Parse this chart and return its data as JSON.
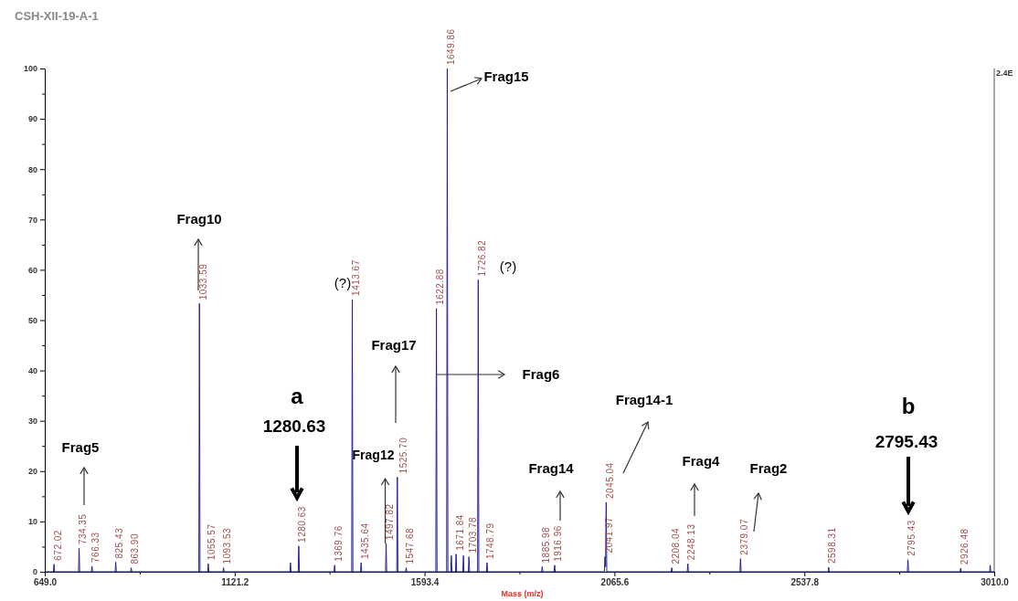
{
  "chart_data": {
    "type": "line",
    "title": "CSH-XII-19-A-1",
    "xlabel": "Mass (m/z)",
    "x": [
      649,
      670.5,
      672.02,
      673.5,
      732.85,
      734.35,
      735.85,
      764.83,
      766.33,
      767.83,
      823.93,
      825.43,
      826.93,
      862.4,
      863.9,
      865.4,
      1032.09,
      1033.59,
      1035.09,
      1054.07,
      1055.57,
      1057.07,
      1092.03,
      1093.53,
      1095.03,
      1258.5,
      1260,
      1261.5,
      1279.13,
      1280.63,
      1282.13,
      1368.26,
      1369.76,
      1371.26,
      1412.17,
      1413.67,
      1415.17,
      1434.14,
      1435.64,
      1437.14,
      1496.32,
      1497.82,
      1499.32,
      1524.2,
      1525.7,
      1527.2,
      1546.18,
      1547.68,
      1549.18,
      1621.38,
      1622.88,
      1624.38,
      1648.36,
      1649.86,
      1651.36,
      1658.5,
      1660,
      1661.5,
      1670.34,
      1671.84,
      1673.34,
      1688.5,
      1690,
      1691.5,
      1702.28,
      1703.78,
      1705.28,
      1725.32,
      1726.82,
      1728.32,
      1747.29,
      1748.79,
      1750.29,
      1884.48,
      1885.98,
      1887.48,
      1915.46,
      1916.96,
      1918.46,
      2040.47,
      2041.97,
      2043.5,
      2045.04,
      2046.54,
      2206.54,
      2208.04,
      2209.54,
      2246.63,
      2248.13,
      2249.63,
      2377.57,
      2379.07,
      2380.57,
      2596.81,
      2598.31,
      2599.81,
      2793.93,
      2795.43,
      2796.93,
      2924.98,
      2926.48,
      2927.98,
      2998.5,
      3000,
      3001.5,
      3010
    ],
    "series": [
      {
        "color": "#1f1f99",
        "values": [
          0,
          0,
          1.5,
          0,
          0,
          4.7,
          0,
          0,
          1.1,
          0,
          0,
          1.9,
          0,
          0,
          0.8,
          0,
          0,
          53.3,
          0,
          0,
          1.6,
          0,
          0,
          0.8,
          0,
          0,
          1.8,
          0,
          0,
          5.1,
          0,
          0,
          1.3,
          0,
          0,
          54.1,
          0,
          0,
          1.8,
          0,
          0,
          5.6,
          0,
          0,
          18.8,
          0,
          0,
          0.8,
          0,
          0,
          52.3,
          0,
          0,
          100,
          0,
          0,
          3.2,
          0,
          0,
          3.5,
          0,
          0,
          3.2,
          0,
          0,
          3,
          0,
          0,
          58,
          0,
          0,
          1.8,
          0,
          0,
          1,
          0,
          0,
          1.3,
          0,
          0,
          3,
          1,
          13.8,
          0,
          0,
          0.8,
          0,
          0,
          1.6,
          0,
          0,
          2.6,
          0,
          0,
          0.9,
          0,
          0,
          2.4,
          0,
          0,
          0.7,
          0,
          0,
          1.3,
          0,
          0
        ]
      }
    ],
    "xlim": [
      649,
      3010
    ],
    "xticks": [
      {
        "value": 649,
        "label": "649.0"
      },
      {
        "value": 885.1,
        "label": null
      },
      {
        "value": 1121.2,
        "label": "1121.2"
      },
      {
        "value": 1357.3,
        "label": null
      },
      {
        "value": 1593.4,
        "label": "1593.4"
      },
      {
        "value": 1829.5,
        "label": null
      },
      {
        "value": 2065.6,
        "label": "2065.6"
      },
      {
        "value": 2301.7,
        "label": null
      },
      {
        "value": 2537.8,
        "label": "2537.8"
      },
      {
        "value": 2773.9,
        "label": null
      },
      {
        "value": 3010,
        "label": "3010.0"
      }
    ],
    "ylim": [
      0,
      100
    ],
    "yticks": [
      0,
      {
        "value": 5,
        "label": null
      },
      10,
      {
        "value": 15,
        "label": null
      },
      20,
      {
        "value": 25,
        "label": null
      },
      30,
      {
        "value": 35,
        "label": null
      },
      40,
      {
        "value": 45,
        "label": null
      },
      50,
      {
        "value": 55,
        "label": null
      },
      60,
      {
        "value": 65,
        "label": null
      },
      70,
      {
        "value": 75,
        "label": null
      },
      80,
      {
        "value": 85,
        "label": null
      },
      90,
      {
        "value": 95,
        "label": null
      },
      100
    ],
    "grid": false,
    "marker": "none",
    "line_style": "solid",
    "annotations": [
      "Frag5",
      "Frag10",
      "Frag17",
      {
        "text": "Frag12",
        "x": 1497.82,
        "y": 5.6
      },
      "Frag6",
      "Frag15",
      "Frag14",
      "Frag14-1",
      "Frag4",
      "Frag2",
      "a",
      "1280.63",
      "b",
      "2795.43",
      "(?)",
      "(?)",
      "2.4E",
      {
        "text": "672.02",
        "x": 672.02,
        "y": 1.5
      },
      {
        "text": "734.35",
        "x": 734.35,
        "y": 4.7
      },
      {
        "text": "766.33",
        "x": 766.33,
        "y": 1.1
      },
      {
        "text": "825.43",
        "x": 825.43,
        "y": 1.9
      },
      {
        "text": "863.90",
        "x": 863.9,
        "y": 0.8
      },
      {
        "text": "1033.59",
        "x": 1033.59,
        "y": 53.3
      },
      {
        "text": "1055.57",
        "x": 1055.57,
        "y": 1.6
      },
      {
        "text": "1093.53",
        "x": 1093.53,
        "y": 0.8
      },
      {
        "text": "1280.63",
        "x": 1280.63,
        "y": 5.1
      },
      {
        "text": "1369.76",
        "x": 1369.76,
        "y": 1.3
      },
      {
        "text": "1413.67",
        "x": 1413.67,
        "y": 54.1
      },
      {
        "text": "1435.64",
        "x": 1435.64,
        "y": 1.8
      },
      {
        "text": "1497.82",
        "x": 1497.82,
        "y": 5.6
      },
      {
        "text": "1525.70",
        "x": 1525.7,
        "y": 18.8
      },
      {
        "text": "1547.68",
        "x": 1547.68,
        "y": 0.8
      },
      {
        "text": "1622.88",
        "x": 1622.88,
        "y": 52.3
      },
      {
        "text": "1649.86",
        "x": 1649.86,
        "y": 100
      },
      {
        "text": "1671.84",
        "x": 1671.84,
        "y": 3.5
      },
      {
        "text": "1703.78",
        "x": 1703.78,
        "y": 3
      },
      {
        "text": "1726.82",
        "x": 1726.82,
        "y": 58
      },
      {
        "text": "1748.79",
        "x": 1748.79,
        "y": 1.8
      },
      {
        "text": "1885.98",
        "x": 1885.98,
        "y": 1
      },
      {
        "text": "1916.96",
        "x": 1916.96,
        "y": 1.3
      },
      {
        "text": "2041.97",
        "x": 2041.97,
        "y": 3
      },
      {
        "text": "2045.04",
        "x": 2045.04,
        "y": 13.8
      },
      {
        "text": "2208.04",
        "x": 2208.04,
        "y": 0.8
      },
      {
        "text": "2248.13",
        "x": 2248.13,
        "y": 1.6
      },
      {
        "text": "2379.07",
        "x": 2379.07,
        "y": 2.6
      },
      {
        "text": "2598.31",
        "x": 2598.31,
        "y": 0.9
      },
      {
        "text": "2795.43",
        "x": 2795.43,
        "y": 2.4
      },
      {
        "text": "2926.48",
        "x": 2926.48,
        "y": 0.7
      }
    ]
  }
}
